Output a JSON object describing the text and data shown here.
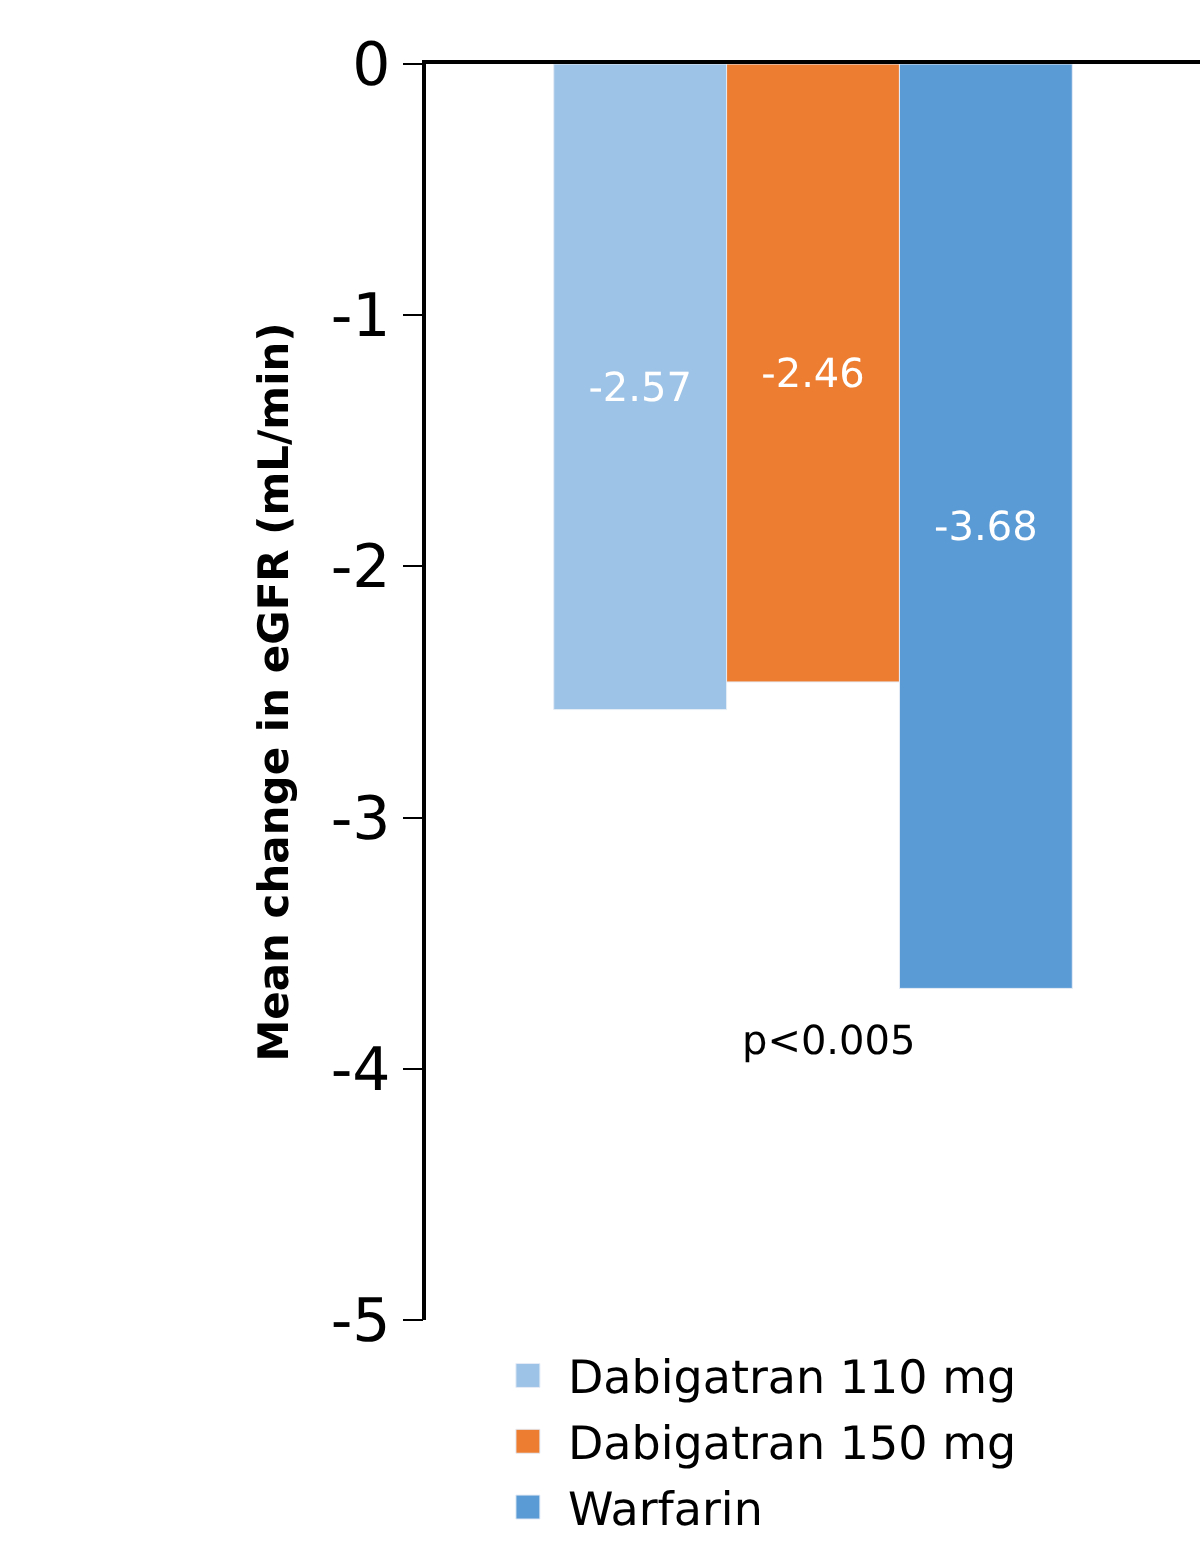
{
  "chart_data": {
    "type": "bar",
    "ylabel": "Mean change in eGFR (mL/min)",
    "categories": [
      null
    ],
    "series": [
      {
        "name": "Dabigatran 110 mg",
        "color": "#9dc3e6",
        "values": [
          -2.57
        ]
      },
      {
        "name": "Dabigatran 150 mg",
        "color": "#ed7d31",
        "values": [
          -2.46
        ]
      },
      {
        "name": "Warfarin",
        "color": "#5b9bd5",
        "values": [
          -3.68
        ]
      }
    ],
    "ylim": [
      -5,
      0
    ],
    "yticks": [
      0,
      -1,
      -2,
      -3,
      -4,
      -5
    ],
    "data_labels": true,
    "legend": "bottom",
    "annotations": [
      "p<0.005"
    ]
  }
}
